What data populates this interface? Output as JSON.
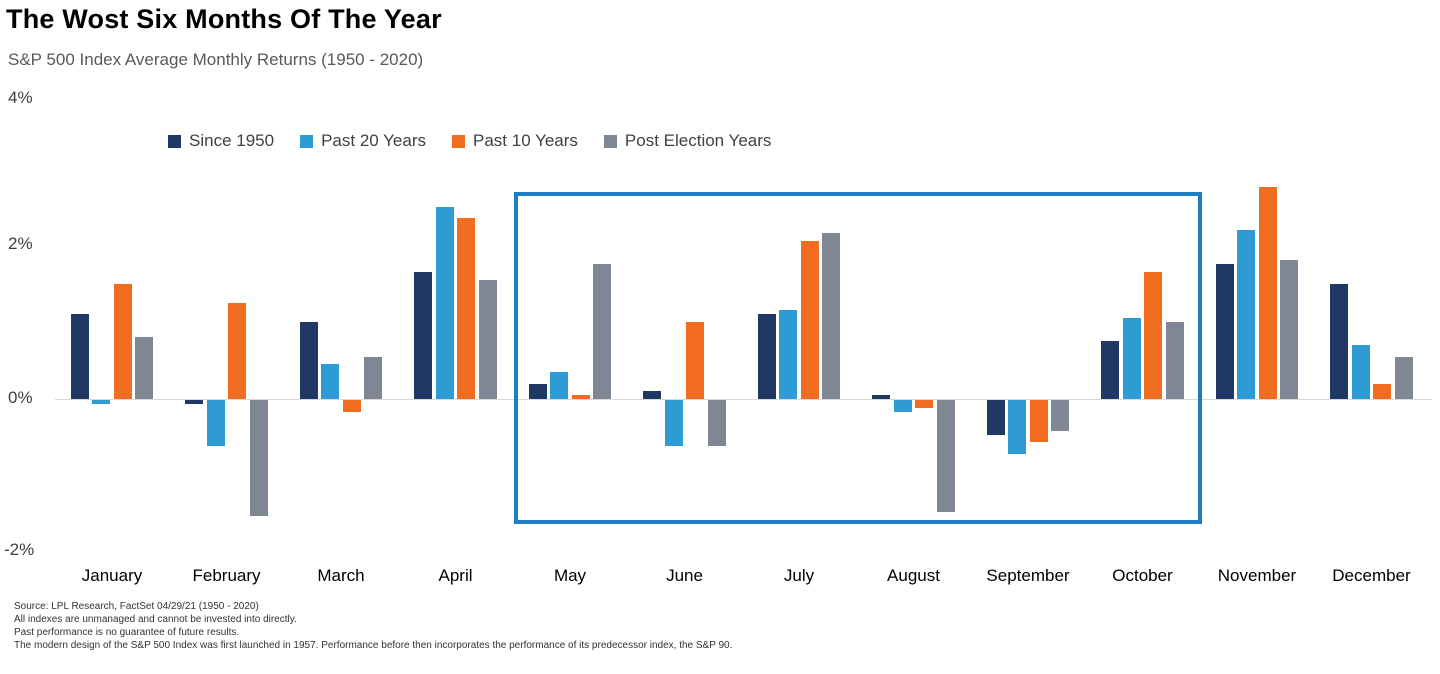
{
  "title": "The Wost Six Months Of The Year",
  "subtitle": "S&P 500 Index Average Monthly Returns (1950 - 2020)",
  "legend": {
    "items": [
      "Since 1950",
      "Past 20 Years",
      "Past 10 Years",
      "Post Election Years"
    ]
  },
  "chart_data": {
    "type": "bar",
    "title": "The Wost Six Months Of The Year",
    "subtitle": "S&P 500 Index Average Monthly Returns (1950 - 2020)",
    "categories": [
      "January",
      "February",
      "March",
      "April",
      "May",
      "June",
      "July",
      "August",
      "September",
      "October",
      "November",
      "December"
    ],
    "series": [
      {
        "name": "Since 1950",
        "color": "#1F3864",
        "values": [
          1.1,
          -0.05,
          1.0,
          1.65,
          0.2,
          0.1,
          1.1,
          0.05,
          -0.45,
          0.75,
          1.75,
          1.5
        ]
      },
      {
        "name": "Past 20 Years",
        "color": "#2E9BD5",
        "values": [
          -0.05,
          -0.6,
          0.45,
          2.5,
          0.35,
          -0.6,
          1.15,
          -0.15,
          -0.7,
          1.05,
          2.2,
          0.7
        ]
      },
      {
        "name": "Past 10 Years",
        "color": "#F36D21",
        "values": [
          1.5,
          1.25,
          -0.15,
          2.35,
          0.05,
          1.0,
          2.05,
          -0.1,
          -0.55,
          1.65,
          2.75,
          0.2
        ]
      },
      {
        "name": "Post Election Years",
        "color": "#7F8794",
        "values": [
          0.8,
          -1.5,
          0.55,
          1.55,
          1.75,
          -0.6,
          2.15,
          -1.45,
          -0.4,
          1.0,
          1.8,
          0.55
        ]
      }
    ],
    "xlabel": "",
    "ylabel": "",
    "ylim": [
      -2,
      4
    ],
    "yticks": [
      "4%",
      "2%",
      "0%",
      "-2%"
    ],
    "grid": "baseline-only",
    "legend_position": "top",
    "highlight_range": [
      "May",
      "October"
    ]
  },
  "footnotes": [
    "Source: LPL Research, FactSet 04/29/21  (1950 - 2020)",
    "All indexes are unmanaged and cannot be invested into directly.",
    "Past performance is no guarantee of future results.",
    "The modern design of the S&P 500 Index was first launched in 1957. Performance before then incorporates the performance of its  predecessor index, the S&P 90."
  ]
}
